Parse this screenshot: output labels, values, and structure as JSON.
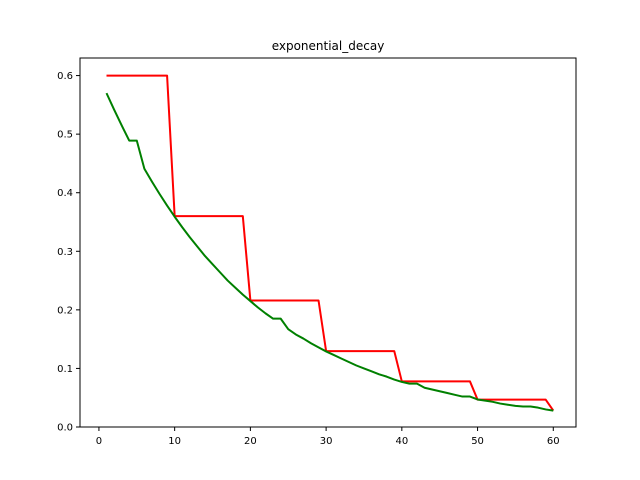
{
  "chart_data": {
    "type": "line",
    "title": "exponential_decay",
    "xlabel": "",
    "ylabel": "",
    "xlim": [
      -2.5,
      63
    ],
    "ylim": [
      0,
      0.63
    ],
    "xticks": [
      0,
      10,
      20,
      30,
      40,
      50,
      60
    ],
    "yticks": [
      0.0,
      0.1,
      0.2,
      0.3,
      0.4,
      0.5,
      0.6
    ],
    "ytick_labels": [
      "0.0",
      "0.1",
      "0.2",
      "0.3",
      "0.4",
      "0.5",
      "0.6"
    ],
    "grid": false,
    "series": [
      {
        "color": "#ff0000",
        "x": [
          1,
          9,
          10,
          19,
          20,
          29,
          30,
          39,
          40,
          49,
          50,
          59,
          60
        ],
        "y": [
          0.6,
          0.6,
          0.36,
          0.36,
          0.216,
          0.216,
          0.1296,
          0.1296,
          0.0778,
          0.0778,
          0.0467,
          0.0467,
          0.028
        ]
      },
      {
        "color": "#008000",
        "x": [
          1,
          2,
          3,
          4,
          5,
          6,
          7,
          8,
          9,
          10,
          11,
          12,
          13,
          14,
          15,
          16,
          17,
          18,
          19,
          20,
          21,
          22,
          23,
          24,
          25,
          26,
          27,
          28,
          29,
          30,
          31,
          32,
          33,
          34,
          35,
          36,
          37,
          38,
          39,
          40,
          41,
          42,
          43,
          44,
          45,
          46,
          47,
          48,
          49,
          50,
          51,
          52,
          53,
          54,
          55,
          56,
          57,
          58,
          59,
          60
        ],
        "y": [
          0.57,
          0.542,
          0.515,
          0.489,
          0.489,
          0.441,
          0.419,
          0.398,
          0.378,
          0.359,
          0.341,
          0.324,
          0.308,
          0.292,
          0.278,
          0.264,
          0.25,
          0.238,
          0.226,
          0.215,
          0.204,
          0.194,
          0.185,
          0.185,
          0.167,
          0.158,
          0.151,
          0.143,
          0.136,
          0.129,
          0.123,
          0.117,
          0.111,
          0.105,
          0.1,
          0.095,
          0.09,
          0.086,
          0.081,
          0.077,
          0.074,
          0.074,
          0.067,
          0.064,
          0.061,
          0.058,
          0.055,
          0.052,
          0.052,
          0.047,
          0.045,
          0.043,
          0.04,
          0.038,
          0.036,
          0.035,
          0.035,
          0.033,
          0.03,
          0.028
        ]
      }
    ]
  }
}
